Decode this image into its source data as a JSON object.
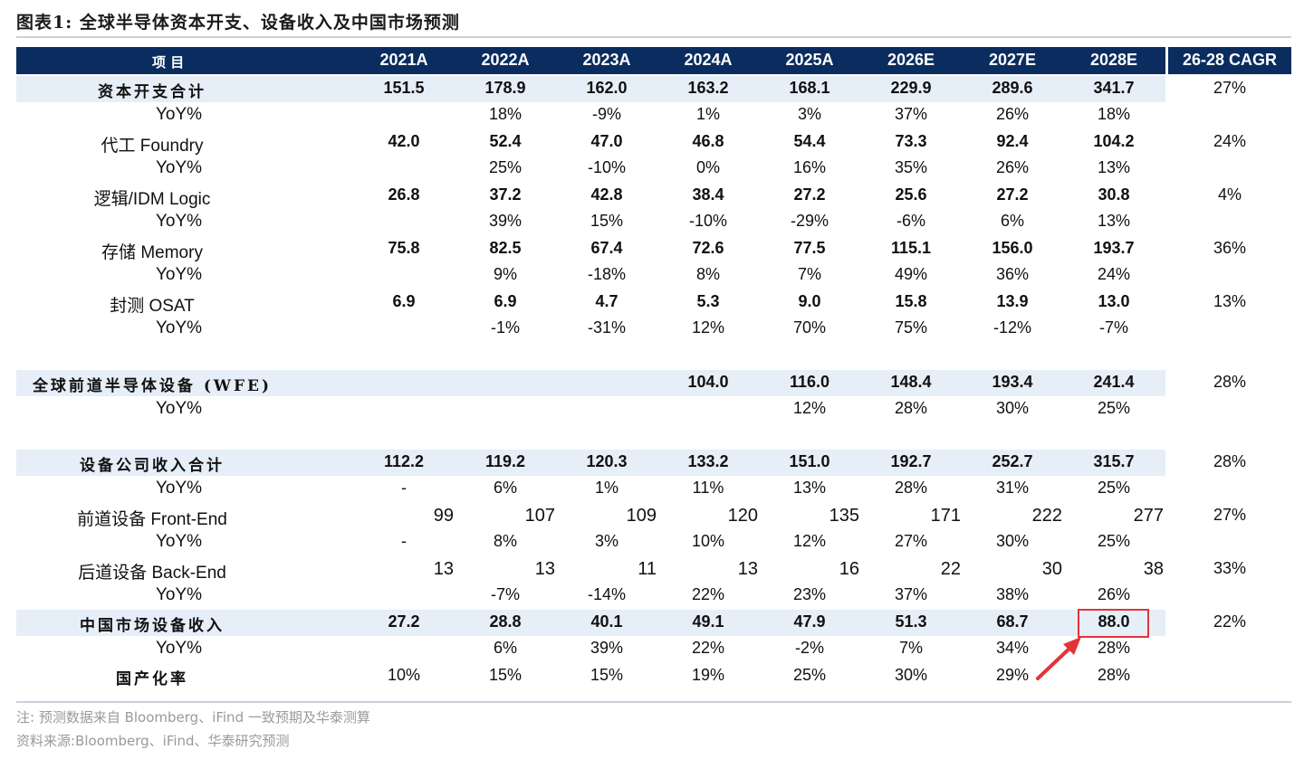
{
  "title": "图表1:  全球半导体资本开支、设备收入及中国市场预测",
  "header": {
    "item": "项  目",
    "years": [
      "2021A",
      "2022A",
      "2023A",
      "2024A",
      "2025A",
      "2026E",
      "2027E",
      "2028E"
    ],
    "cagr": "26-28 CAGR"
  },
  "rows": [
    {
      "label": "资本开支合计",
      "values": [
        "151.5",
        "178.9",
        "162.0",
        "163.2",
        "168.1",
        "229.9",
        "289.6",
        "341.7"
      ],
      "cagr": "27%"
    },
    {
      "label": "YoY%",
      "values": [
        "",
        "18%",
        "-9%",
        "1%",
        "3%",
        "37%",
        "26%",
        "18%"
      ],
      "cagr": ""
    },
    {
      "label": "代工 Foundry",
      "values": [
        "42.0",
        "52.4",
        "47.0",
        "46.8",
        "54.4",
        "73.3",
        "92.4",
        "104.2"
      ],
      "cagr": "24%"
    },
    {
      "label": "YoY%",
      "values": [
        "",
        "25%",
        "-10%",
        "0%",
        "16%",
        "35%",
        "26%",
        "13%"
      ],
      "cagr": ""
    },
    {
      "label": "逻辑/IDM Logic",
      "values": [
        "26.8",
        "37.2",
        "42.8",
        "38.4",
        "27.2",
        "25.6",
        "27.2",
        "30.8"
      ],
      "cagr": "4%"
    },
    {
      "label": "YoY%",
      "values": [
        "",
        "39%",
        "15%",
        "-10%",
        "-29%",
        "-6%",
        "6%",
        "13%"
      ],
      "cagr": ""
    },
    {
      "label": "存储 Memory",
      "values": [
        "75.8",
        "82.5",
        "67.4",
        "72.6",
        "77.5",
        "115.1",
        "156.0",
        "193.7"
      ],
      "cagr": "36%"
    },
    {
      "label": "YoY%",
      "values": [
        "",
        "9%",
        "-18%",
        "8%",
        "7%",
        "49%",
        "36%",
        "24%"
      ],
      "cagr": ""
    },
    {
      "label": "封测 OSAT",
      "values": [
        "6.9",
        "6.9",
        "4.7",
        "5.3",
        "9.0",
        "15.8",
        "13.9",
        "13.0"
      ],
      "cagr": "13%"
    },
    {
      "label": "YoY%",
      "values": [
        "",
        "-1%",
        "-31%",
        "12%",
        "70%",
        "75%",
        "-12%",
        "-7%"
      ],
      "cagr": ""
    },
    {
      "label": "全球前道半导体设备 (WFE)",
      "values": [
        "",
        "",
        "",
        "104.0",
        "116.0",
        "148.4",
        "193.4",
        "241.4"
      ],
      "cagr": "28%"
    },
    {
      "label": "YoY%",
      "values": [
        "",
        "",
        "",
        "",
        "12%",
        "28%",
        "30%",
        "25%"
      ],
      "cagr": ""
    },
    {
      "label": "设备公司收入合计",
      "values": [
        "112.2",
        "119.2",
        "120.3",
        "133.2",
        "151.0",
        "192.7",
        "252.7",
        "315.7"
      ],
      "cagr": "28%"
    },
    {
      "label": "YoY%",
      "values": [
        "-",
        "6%",
        "1%",
        "11%",
        "13%",
        "28%",
        "31%",
        "25%"
      ],
      "cagr": ""
    },
    {
      "label": "前道设备 Front-End",
      "values": [
        "99",
        "107",
        "109",
        "120",
        "135",
        "171",
        "222",
        "277"
      ],
      "cagr": "27%"
    },
    {
      "label": "YoY%",
      "values": [
        "-",
        "8%",
        "3%",
        "10%",
        "12%",
        "27%",
        "30%",
        "25%"
      ],
      "cagr": ""
    },
    {
      "label": "后道设备 Back-End",
      "values": [
        "13",
        "13",
        "11",
        "13",
        "16",
        "22",
        "30",
        "38"
      ],
      "cagr": "33%"
    },
    {
      "label": "YoY%",
      "values": [
        "",
        "-7%",
        "-14%",
        "22%",
        "23%",
        "37%",
        "38%",
        "26%"
      ],
      "cagr": ""
    },
    {
      "label": "中国市场设备收入",
      "values": [
        "27.2",
        "28.8",
        "40.1",
        "49.1",
        "47.9",
        "51.3",
        "68.7",
        "88.0"
      ],
      "cagr": "22%"
    },
    {
      "label": "YoY%",
      "values": [
        "",
        "6%",
        "39%",
        "22%",
        "-2%",
        "7%",
        "34%",
        "28%"
      ],
      "cagr": ""
    },
    {
      "label": "国产化率",
      "values": [
        "10%",
        "15%",
        "15%",
        "19%",
        "25%",
        "30%",
        "29%",
        "28%"
      ],
      "cagr": ""
    }
  ],
  "notes": {
    "note": "注:  预测数据来自 Bloomberg、iFind 一致预期及华泰测算",
    "source": "资料来源:Bloomberg、iFind、华泰研究预测"
  },
  "colors": {
    "header_bg": "#0a2c5e",
    "highlight_bg": "#e6eef7",
    "annotation": "#e2333c"
  }
}
